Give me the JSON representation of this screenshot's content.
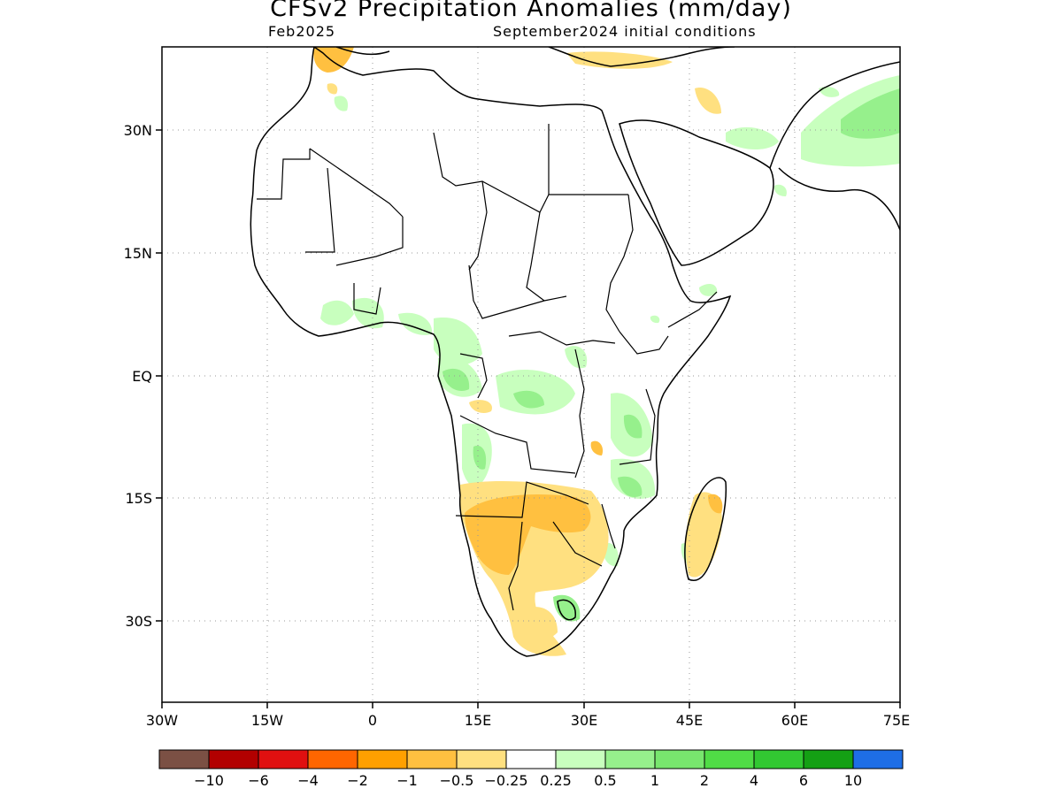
{
  "title": "CFSv2 Precipitation Anomalies (mm/day)",
  "subtitle_left": "Feb2025",
  "subtitle_right": "September2024 initial conditions",
  "axes": {
    "lat_ticks": [
      "30N",
      "15N",
      "EQ",
      "15S",
      "30S"
    ],
    "lon_ticks": [
      "30W",
      "15W",
      "0",
      "15E",
      "30E",
      "45E",
      "60E",
      "75E"
    ]
  },
  "colorbar": {
    "colors": [
      "#7b5044",
      "#b20000",
      "#e01010",
      "#ff6600",
      "#ffa000",
      "#ffc040",
      "#ffe080",
      "#ffffff",
      "#c8ffbe",
      "#96f08c",
      "#78e66e",
      "#50dc46",
      "#32c832",
      "#14a014",
      "#1e6ee6"
    ],
    "labels": [
      "-10",
      "-6",
      "-4",
      "-2",
      "-1",
      "-0.5",
      "-0.25",
      "0.25",
      "0.5",
      "1",
      "2",
      "4",
      "6",
      "10"
    ]
  }
}
